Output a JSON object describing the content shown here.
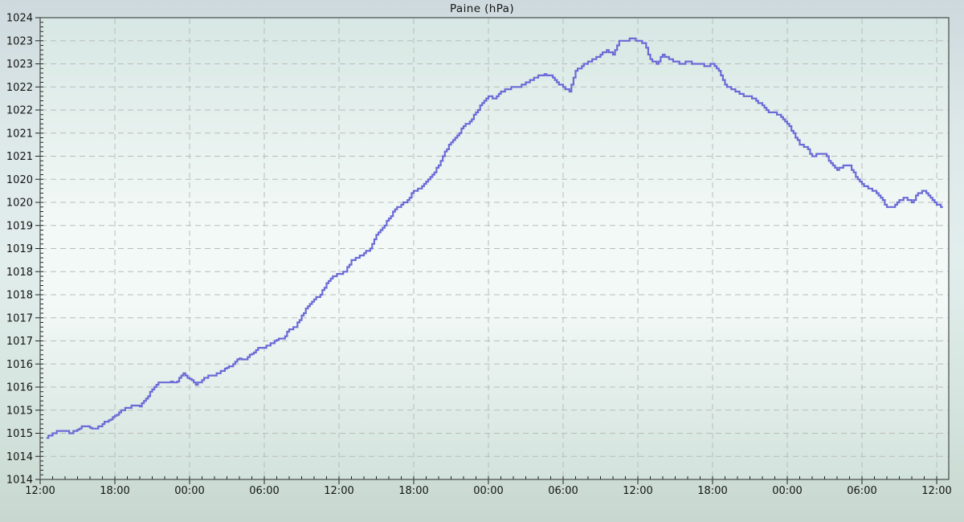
{
  "chart_data": {
    "type": "line",
    "title": "Paine (hPa)",
    "xlabel": "",
    "ylabel": "",
    "legend": "none",
    "grid": {
      "on": true,
      "color": "#b8bdbb",
      "dash": "7 5"
    },
    "y_axis": {
      "min": 1014,
      "max": 1024,
      "major_step": 0.5,
      "minor_step": 0.1,
      "tick_labels": [
        "1024",
        "1023",
        "1023",
        "1022",
        "1022",
        "1021",
        "1021",
        "1020",
        "1020",
        "1019",
        "1019",
        "1018",
        "1018",
        "1017",
        "1017",
        "1016",
        "1016",
        "1015",
        "1015",
        "1014",
        "1014"
      ]
    },
    "x_axis": {
      "hours_total": 72.97,
      "major_step_hours": 6,
      "minor_step_hours": 1,
      "tick_labels": [
        "12:00",
        "18:00",
        "00:00",
        "06:00",
        "12:00",
        "18:00",
        "00:00",
        "06:00",
        "12:00",
        "18:00",
        "00:00",
        "06:00",
        "12:00"
      ]
    },
    "series": [
      {
        "name": "Paine",
        "color": "#6a6ad6",
        "line_width": 2.2,
        "t_start_hours": 0.5,
        "t_step_hours": 0.5,
        "values": [
          1014.9,
          1015.0,
          1015.05,
          1015.05,
          1015.0,
          1015.08,
          1015.15,
          1015.12,
          1015.1,
          1015.2,
          1015.28,
          1015.38,
          1015.5,
          1015.55,
          1015.6,
          1015.58,
          1015.75,
          1015.95,
          1016.1,
          1016.1,
          1016.12,
          1016.12,
          1016.3,
          1016.18,
          1016.05,
          1016.15,
          1016.25,
          1016.25,
          1016.35,
          1016.42,
          1016.5,
          1016.62,
          1016.6,
          1016.72,
          1016.85,
          1016.85,
          1016.95,
          1017.02,
          1017.05,
          1017.25,
          1017.3,
          1017.55,
          1017.75,
          1017.9,
          1018.0,
          1018.25,
          1018.4,
          1018.45,
          1018.5,
          1018.75,
          1018.8,
          1018.9,
          1019.0,
          1019.3,
          1019.45,
          1019.65,
          1019.85,
          1019.95,
          1020.05,
          1020.25,
          1020.3,
          1020.45,
          1020.6,
          1020.8,
          1021.1,
          1021.3,
          1021.45,
          1021.65,
          1021.75,
          1021.95,
          1022.15,
          1022.3,
          1022.25,
          1022.4,
          1022.45,
          1022.5,
          1022.5,
          1022.6,
          1022.65,
          1022.75,
          1022.78,
          1022.75,
          1022.6,
          1022.5,
          1022.4,
          1022.85,
          1022.95,
          1023.05,
          1023.1,
          1023.2,
          1023.3,
          1023.2,
          1023.5,
          1023.5,
          1023.55,
          1023.5,
          1023.45,
          1023.1,
          1023.0,
          1023.2,
          1023.1,
          1023.05,
          1023.0,
          1023.05,
          1023.0,
          1023.0,
          1022.95,
          1023.0,
          1022.85,
          1022.55,
          1022.45,
          1022.4,
          1022.3,
          1022.3,
          1022.2,
          1022.1,
          1021.95,
          1021.95,
          1021.85,
          1021.7,
          1021.5,
          1021.25,
          1021.2,
          1021.0,
          1021.05,
          1021.05,
          1020.85,
          1020.7,
          1020.8,
          1020.8,
          1020.55,
          1020.4,
          1020.3,
          1020.25,
          1020.1,
          1019.9,
          1019.9,
          1020.05,
          1020.1,
          1020.0,
          1020.2,
          1020.25,
          1020.1,
          1019.95,
          1019.9
        ]
      }
    ],
    "colors": {
      "plot_bg_top": "#d7e7e3",
      "plot_bg_mid": "#f3f9f7",
      "plot_bg_bottom": "#d2e2dc",
      "border": "#454a49",
      "tick": "#222222",
      "text": "#141414"
    }
  }
}
